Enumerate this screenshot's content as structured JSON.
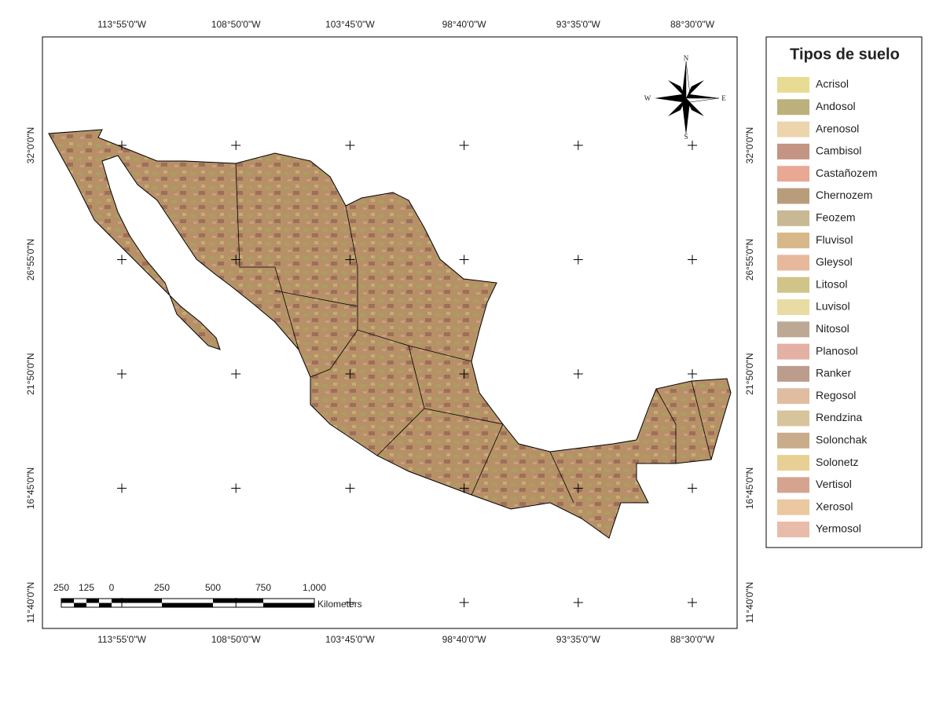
{
  "map": {
    "longitude_labels": [
      "113°55'0\"W",
      "108°50'0\"W",
      "103°45'0\"W",
      "98°40'0\"W",
      "93°35'0\"W",
      "88°30'0\"W"
    ],
    "latitude_labels": [
      "32°0'0\"N",
      "26°55'0\"N",
      "21°50'0\"N",
      "16°45'0\"N",
      "11°40'0\"N"
    ],
    "legend": {
      "title": "Tipos de suelo",
      "items": [
        {
          "name": "Acrisol",
          "color": "#e8dc94"
        },
        {
          "name": "Andosol",
          "color": "#bcb07c"
        },
        {
          "name": "Arenosol",
          "color": "#ecd4ac"
        },
        {
          "name": "Cambisol",
          "color": "#c49484"
        },
        {
          "name": "Castañozem",
          "color": "#e8a894"
        },
        {
          "name": "Chernozem",
          "color": "#b89c7c"
        },
        {
          "name": "Feozem",
          "color": "#c8b894"
        },
        {
          "name": "Fluvisol",
          "color": "#d8b888"
        },
        {
          "name": "Gleysol",
          "color": "#e8b89c"
        },
        {
          "name": "Litosol",
          "color": "#d0c488"
        },
        {
          "name": "Luvisol",
          "color": "#e8dca4"
        },
        {
          "name": "Nitosol",
          "color": "#bca894"
        },
        {
          "name": "Planosol",
          "color": "#e4b0a4"
        },
        {
          "name": "Ranker",
          "color": "#bc9c8c"
        },
        {
          "name": "Regosol",
          "color": "#e0bca0"
        },
        {
          "name": "Rendzina",
          "color": "#d8c49c"
        },
        {
          "name": "Solonchak",
          "color": "#c8ac8c"
        },
        {
          "name": "Solonetz",
          "color": "#e8d094"
        },
        {
          "name": "Vertisol",
          "color": "#d4a490"
        },
        {
          "name": "Xerosol",
          "color": "#ecc8a0"
        },
        {
          "name": "Yermosol",
          "color": "#e8bca8"
        }
      ]
    },
    "scale_bar": {
      "labels": [
        "250",
        "125",
        "0",
        "250",
        "500",
        "750",
        "1,000"
      ],
      "unit": "Kilometers"
    },
    "compass": {
      "north": "N",
      "south": "S",
      "east": "E",
      "west": "W"
    }
  }
}
